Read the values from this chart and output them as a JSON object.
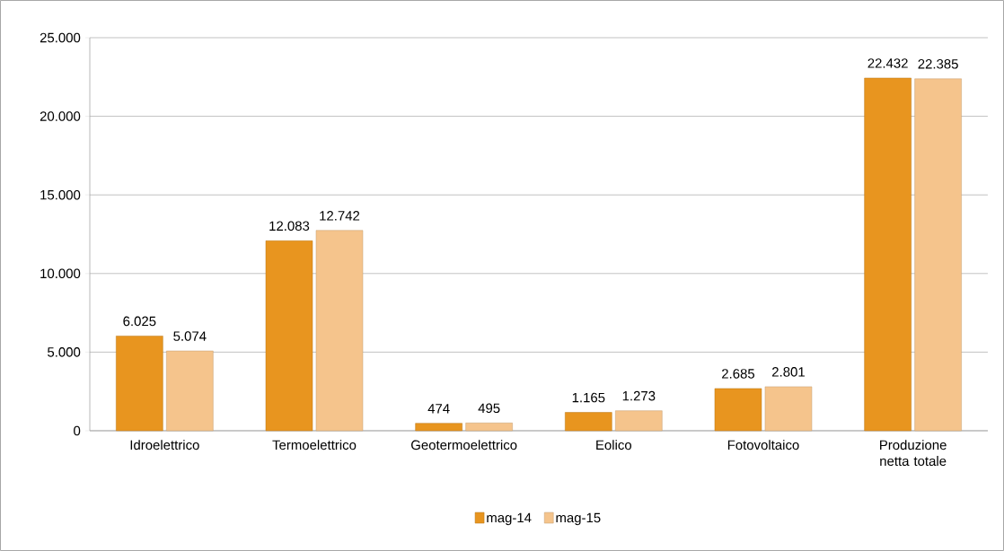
{
  "chart_data": {
    "type": "bar",
    "categories": [
      "Idroelettrico",
      "Termoelettrico",
      "Geotermoelettrico",
      "Eolico",
      "Fotovoltaico",
      "Produzione netta totale"
    ],
    "series": [
      {
        "name": "mag-14",
        "color": "#e8951f",
        "values": [
          6025,
          12083,
          474,
          1165,
          2685,
          22432
        ],
        "value_labels": [
          "6.025",
          "12.083",
          "474",
          "1.165",
          "2.685",
          "22.432"
        ]
      },
      {
        "name": "mag-15",
        "color": "#f5c48c",
        "values": [
          5074,
          12742,
          495,
          1273,
          2801,
          22385
        ],
        "value_labels": [
          "5.074",
          "12.742",
          "495",
          "1.273",
          "2.801",
          "22.385"
        ]
      }
    ],
    "ylim": [
      0,
      25000
    ],
    "yticks": [
      {
        "value": 0,
        "label": "0"
      },
      {
        "value": 5000,
        "label": "5.000"
      },
      {
        "value": 10000,
        "label": "10.000"
      },
      {
        "value": 15000,
        "label": "15.000"
      },
      {
        "value": 20000,
        "label": "20.000"
      },
      {
        "value": 25000,
        "label": "25.000"
      }
    ],
    "grid": "y",
    "legend": "bottom"
  }
}
